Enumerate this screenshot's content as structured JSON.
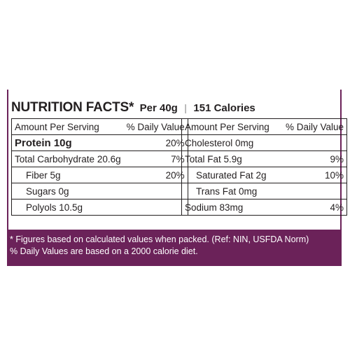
{
  "title": {
    "main": "NUTRITION FACTS*",
    "per": "Per 40g",
    "separator": "|",
    "calories": "151 Calories"
  },
  "left_table": {
    "header": [
      "Amount Per Serving",
      "% Daily Value"
    ],
    "rows": [
      {
        "label": "Protein 10g",
        "value": "20%"
      },
      {
        "label": "Total Carbohydrate 20.6g",
        "value": "7%"
      },
      {
        "label": "Fiber 5g",
        "value": "20%"
      },
      {
        "label": "Sugars 0g",
        "value": ""
      },
      {
        "label": "Polyols 10.5g",
        "value": ""
      }
    ]
  },
  "right_table": {
    "header": [
      "Amount Per Serving",
      "% Daily Value"
    ],
    "rows": [
      {
        "label": "Cholesterol 0mg",
        "value": ""
      },
      {
        "label": "Total Fat 5.9g",
        "value": "9%"
      },
      {
        "label": "Saturated Fat 2g",
        "value": "10%"
      },
      {
        "label": "Trans Fat 0mg",
        "value": ""
      },
      {
        "label": "Sodium 83mg",
        "value": "4%"
      }
    ]
  },
  "footnotes": [
    "* Figures based on calculated values when packed. (Ref: NIN, USFDA Norm)",
    "% Daily Values are based on a 2000 calorie diet."
  ],
  "colors": {
    "accent": "#6b2259",
    "text": "#231f20",
    "background": "#ffffff"
  }
}
